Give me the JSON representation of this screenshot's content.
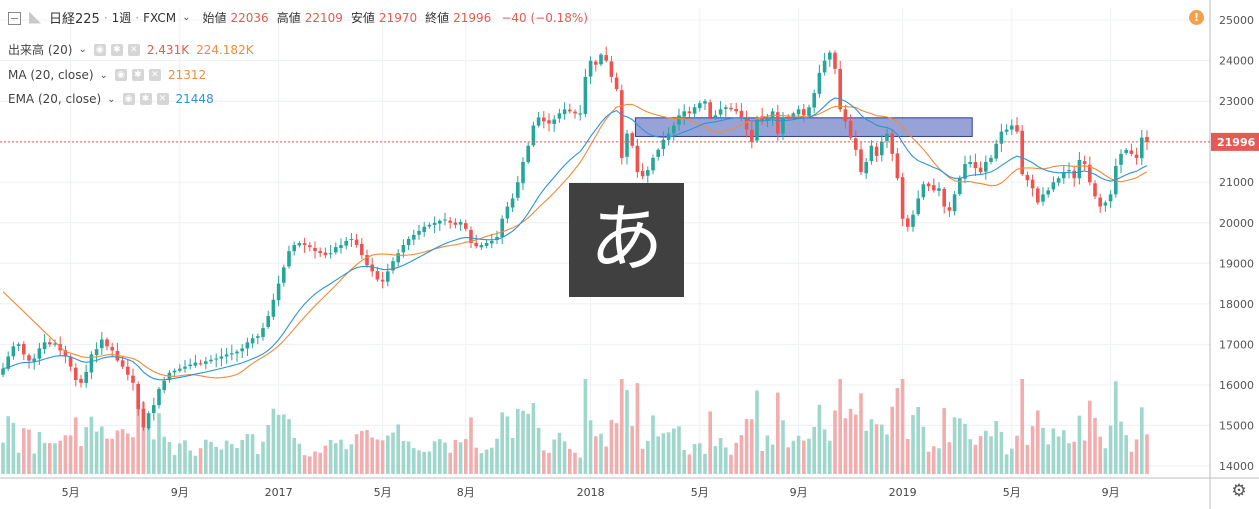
{
  "header": {
    "symbol": "日経225",
    "interval": "1週",
    "source": "FXCM",
    "open_label": "始値",
    "open": "22036",
    "high_label": "高値",
    "high": "22109",
    "low_label": "安値",
    "low": "21970",
    "close_label": "終値",
    "close": "21996",
    "change": "−40 (−0.18%)"
  },
  "indicators": [
    {
      "label": "出来高 (20)",
      "values": [
        "2.431K",
        "224.182K"
      ],
      "colors": [
        "#e45a54",
        "#f08b3a"
      ]
    },
    {
      "label": "MA (20, close)",
      "values": [
        "21312"
      ],
      "colors": [
        "#f08b3a"
      ]
    },
    {
      "label": "EMA (20, close)",
      "values": [
        "21448"
      ],
      "colors": [
        "#2c94d6"
      ]
    }
  ],
  "overlay_glyph": "あ",
  "warning_icon": "!",
  "price_badge": "21996",
  "colors": {
    "up": "#26a69a",
    "down": "#ef5350",
    "ma": "#f08b3a",
    "ema": "#2c94d6",
    "zone": "#6f7fc8",
    "vol_up": "#8fd0c3",
    "vol_down": "#f0a0a0"
  },
  "chart_data": {
    "type": "candlestick",
    "x_tick_labels": [
      "5月",
      "9月",
      "2017",
      "5月",
      "8月",
      "2018",
      "5月",
      "9月",
      "2019",
      "5月",
      "9月"
    ],
    "y_tick_labels": [
      "14000",
      "15000",
      "16000",
      "17000",
      "18000",
      "19000",
      "20000",
      "21000",
      "22000",
      "23000",
      "24000",
      "25000"
    ],
    "ylim": [
      13800,
      25300
    ],
    "last_price": 21996,
    "zone": {
      "low": 22130,
      "high": 22590,
      "start_index": 122,
      "end_index": 186
    },
    "series": [
      {
        "name": "日経225",
        "kind": "weekly close",
        "values": [
          16400,
          16700,
          16950,
          17000,
          16750,
          16600,
          16650,
          16900,
          17050,
          17000,
          17020,
          16850,
          16700,
          16450,
          16120,
          16050,
          16320,
          16750,
          16880,
          17120,
          16950,
          16850,
          16600,
          16450,
          16250,
          16050,
          15400,
          14950,
          15300,
          15500,
          15900,
          16100,
          16300,
          16350,
          16400,
          16450,
          16500,
          16550,
          16520,
          16580,
          16620,
          16650,
          16700,
          16750,
          16780,
          16820,
          16900,
          17050,
          17150,
          17200,
          17400,
          17700,
          18100,
          18500,
          18900,
          19300,
          19450,
          19500,
          19450,
          19400,
          19300,
          19250,
          19200,
          19250,
          19400,
          19450,
          19550,
          19600,
          19450,
          19200,
          18950,
          18800,
          18600,
          18550,
          18800,
          19050,
          19250,
          19450,
          19600,
          19700,
          19800,
          19900,
          19950,
          20000,
          20050,
          20080,
          20000,
          19950,
          20020,
          19850,
          19500,
          19420,
          19450,
          19500,
          19550,
          19650,
          20100,
          20400,
          20600,
          21000,
          21500,
          21900,
          22400,
          22600,
          22500,
          22450,
          22550,
          22700,
          22800,
          22750,
          22700,
          22700,
          23600,
          24000,
          23900,
          24150,
          24000,
          23600,
          23300,
          21600,
          22200,
          21900,
          21250,
          21150,
          21300,
          21600,
          21800,
          22050,
          22200,
          22400,
          22650,
          22750,
          22700,
          22850,
          22950,
          23000,
          22600,
          22650,
          22800,
          22850,
          22800,
          22750,
          22600,
          22300,
          22000,
          22600,
          22500,
          22600,
          22750,
          22200,
          22600,
          22600,
          22700,
          22800,
          22650,
          22850,
          23200,
          23700,
          24000,
          24200,
          23800,
          22800,
          22500,
          22100,
          21800,
          21250,
          21500,
          21900,
          21650,
          22000,
          22200,
          21700,
          21100,
          20100,
          19900,
          20200,
          20600,
          20950,
          20900,
          20800,
          20850,
          20400,
          20300,
          20700,
          21100,
          21450,
          21500,
          21350,
          21250,
          21500,
          21600,
          21950,
          22250,
          22300,
          22400,
          22250,
          21200,
          21050,
          20850,
          20500,
          20700,
          20800,
          21000,
          21100,
          21250,
          21300,
          21100,
          21550,
          21450,
          21000,
          20650,
          20400,
          20500,
          20700,
          21400,
          21700,
          21800,
          21700,
          21600,
          22100,
          21996
        ]
      },
      {
        "name": "MA (20, close)",
        "kind": "line",
        "last": 21312
      },
      {
        "name": "EMA (20, close)",
        "kind": "line",
        "last": 21448
      },
      {
        "name": "出来高 (20)",
        "kind": "volume",
        "last": 2431,
        "ma_last": 224182
      }
    ]
  }
}
